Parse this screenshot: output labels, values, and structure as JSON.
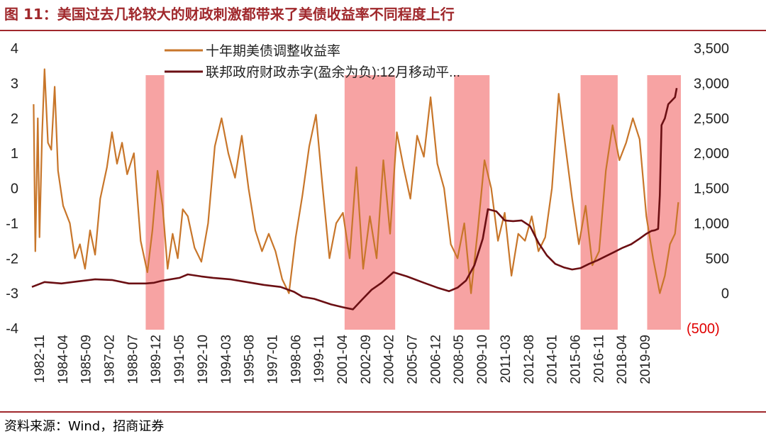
{
  "title": "图 11：美国过去几轮较大的财政刺激都带来了美债收益率不同程度上行",
  "source": "资料来源：Wind，招商证券",
  "colors": {
    "title": "#a0282c",
    "yield_line": "#c8762a",
    "deficit_line": "#6b0f13",
    "shade": "#f7a3a3",
    "negative_tick": "#e00000"
  },
  "chart_data": {
    "type": "line",
    "title": "",
    "x_tick_labels": [
      "1982-11",
      "1984-04",
      "1985-09",
      "1987-02",
      "1988-07",
      "1989-12",
      "1991-05",
      "1992-10",
      "1994-03",
      "1995-08",
      "1997-01",
      "1998-06",
      "1999-11",
      "2001-04",
      "2002-09",
      "2004-02",
      "2005-07",
      "2006-12",
      "2008-05",
      "2009-10",
      "2011-03",
      "2012-08",
      "2014-01",
      "2015-06",
      "2016-11",
      "2018-04",
      "2019-09"
    ],
    "x_range": [
      1982.75,
      2021.25
    ],
    "y_left": {
      "ylim": [
        -4,
        4
      ],
      "ticks": [
        4,
        3,
        2,
        1,
        0,
        -1,
        -2,
        -3,
        -4
      ],
      "tick_labels": [
        "4",
        "3",
        "2",
        "1",
        "0",
        "-1",
        "-2",
        "-3",
        "-4"
      ]
    },
    "y_right": {
      "ylim": [
        -500,
        3500
      ],
      "ticks": [
        3500,
        3000,
        2500,
        2000,
        1500,
        1000,
        500,
        0,
        -500
      ],
      "tick_labels": [
        "3,500",
        "3,000",
        "2,500",
        "2,000",
        "1,500",
        "1,000",
        "500",
        "0",
        "(500)"
      ]
    },
    "legend": {
      "placement": "top-center"
    },
    "shaded_periods": [
      {
        "start": 1989.5,
        "end": 1990.6
      },
      {
        "start": 2001.3,
        "end": 2004.3
      },
      {
        "start": 2007.8,
        "end": 2009.9
      },
      {
        "start": 2015.3,
        "end": 2017.5
      },
      {
        "start": 2019.25,
        "end": 2021.25
      }
    ],
    "series": [
      {
        "name": "十年期美债调整收益率",
        "axis": "left",
        "x": [
          1982.85,
          1982.95,
          1983.1,
          1983.2,
          1983.35,
          1983.5,
          1983.7,
          1983.9,
          1984.1,
          1984.3,
          1984.6,
          1985.0,
          1985.3,
          1985.6,
          1985.9,
          1986.2,
          1986.5,
          1986.8,
          1987.2,
          1987.5,
          1987.8,
          1988.1,
          1988.4,
          1988.8,
          1989.2,
          1989.6,
          1989.9,
          1990.2,
          1990.5,
          1990.8,
          1991.1,
          1991.4,
          1991.7,
          1992.0,
          1992.4,
          1992.8,
          1993.2,
          1993.6,
          1994.0,
          1994.4,
          1994.8,
          1995.2,
          1995.6,
          1996.0,
          1996.4,
          1996.8,
          1997.2,
          1997.6,
          1998.0,
          1998.4,
          1998.8,
          1999.2,
          1999.6,
          2000.0,
          2000.4,
          2000.8,
          2001.2,
          2001.6,
          2002.0,
          2002.4,
          2002.8,
          2003.2,
          2003.6,
          2004.0,
          2004.4,
          2004.8,
          2005.2,
          2005.6,
          2006.0,
          2006.4,
          2006.8,
          2007.2,
          2007.6,
          2008.0,
          2008.4,
          2008.8,
          2009.2,
          2009.6,
          2010.0,
          2010.4,
          2010.8,
          2011.2,
          2011.6,
          2012.0,
          2012.4,
          2012.8,
          2013.2,
          2013.6,
          2014.0,
          2014.4,
          2014.8,
          2015.2,
          2015.6,
          2016.0,
          2016.4,
          2016.8,
          2017.2,
          2017.6,
          2018.0,
          2018.4,
          2018.8,
          2019.2,
          2019.6,
          2020.0,
          2020.3,
          2020.6,
          2020.9,
          2021.1
        ],
        "y": [
          2.4,
          -1.8,
          2.0,
          -1.4,
          1.5,
          3.4,
          1.3,
          1.1,
          2.9,
          0.5,
          -0.5,
          -1.0,
          -2.0,
          -1.6,
          -2.3,
          -1.2,
          -1.9,
          -0.3,
          0.6,
          1.6,
          0.7,
          1.3,
          0.4,
          1.0,
          -1.5,
          -2.4,
          -1.2,
          0.5,
          -0.5,
          -2.3,
          -1.3,
          -2.0,
          -0.6,
          -0.8,
          -1.7,
          -2.1,
          -1.0,
          1.2,
          2.0,
          1.0,
          0.3,
          1.5,
          0.0,
          -1.2,
          -1.8,
          -1.3,
          -1.8,
          -2.6,
          -3.0,
          -1.4,
          -0.2,
          1.2,
          2.1,
          0.0,
          -2.0,
          -1.0,
          -0.7,
          -2.0,
          0.6,
          -2.3,
          -0.8,
          -2.0,
          0.8,
          -1.3,
          1.6,
          0.6,
          -0.3,
          1.5,
          0.9,
          2.6,
          0.7,
          0.0,
          -1.6,
          -2.0,
          -1.0,
          -3.0,
          -1.2,
          0.8,
          0.0,
          -1.5,
          -0.7,
          -2.5,
          -1.3,
          -1.5,
          -0.8,
          -1.8,
          -1.4,
          0.0,
          2.7,
          1.2,
          -0.3,
          -1.6,
          -0.5,
          -2.2,
          -1.8,
          0.5,
          1.8,
          0.8,
          1.3,
          2.0,
          1.4,
          -0.8,
          -2.0,
          -3.0,
          -2.5,
          -1.6,
          -1.3,
          -0.4
        ]
      },
      {
        "name": "联邦政府财政赤字(盈余为负):12月移动平...",
        "axis": "right",
        "x": [
          1982.75,
          1983.5,
          1984.5,
          1985.5,
          1986.5,
          1987.5,
          1988.5,
          1989.5,
          1990.0,
          1990.5,
          1991.5,
          1992.0,
          1992.8,
          1993.5,
          1994.5,
          1995.5,
          1996.5,
          1997.5,
          1998.3,
          1998.8,
          1999.5,
          2000.5,
          2001.2,
          2001.8,
          2002.3,
          2002.9,
          2003.5,
          2004.2,
          2005.0,
          2006.0,
          2006.8,
          2007.5,
          2008.0,
          2008.5,
          2009.0,
          2009.5,
          2009.8,
          2010.3,
          2010.8,
          2011.3,
          2011.8,
          2012.3,
          2012.8,
          2013.3,
          2013.8,
          2014.3,
          2014.8,
          2015.3,
          2015.8,
          2016.3,
          2016.8,
          2017.3,
          2017.8,
          2018.3,
          2018.8,
          2019.2,
          2019.5,
          2019.7,
          2019.9,
          2020.0,
          2020.1,
          2020.3,
          2020.5,
          2020.7,
          2020.9,
          2021.0
        ],
        "y": [
          90,
          160,
          140,
          170,
          200,
          190,
          140,
          140,
          150,
          180,
          220,
          270,
          240,
          220,
          200,
          160,
          120,
          90,
          20,
          -50,
          -80,
          -160,
          -200,
          -230,
          -100,
          50,
          150,
          300,
          240,
          150,
          80,
          30,
          80,
          180,
          400,
          780,
          1200,
          1170,
          1040,
          1030,
          1040,
          960,
          720,
          540,
          420,
          370,
          340,
          360,
          420,
          470,
          530,
          590,
          650,
          700,
          780,
          850,
          890,
          900,
          920,
          1400,
          2400,
          2500,
          2700,
          2750,
          2800,
          2930
        ]
      }
    ]
  }
}
